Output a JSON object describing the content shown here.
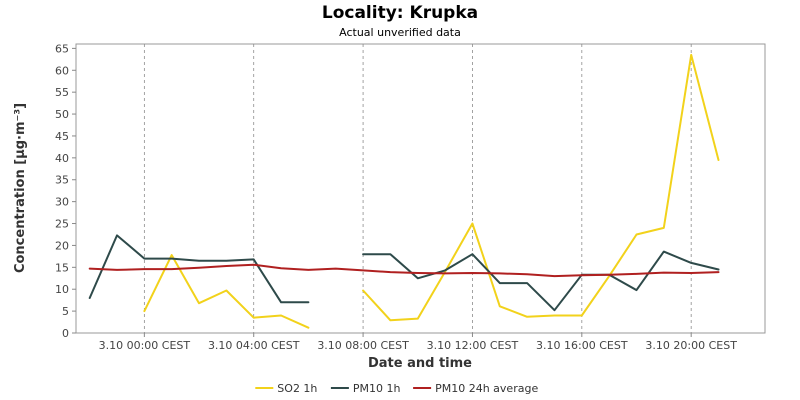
{
  "chart_data": {
    "type": "line",
    "title": "Locality: Krupka",
    "subtitle": "Actual unverified data",
    "xlabel": "Date and time",
    "ylabel": "Concentration [µg·m⁻³]",
    "ylim": [
      0,
      66
    ],
    "yticks": [
      0,
      5,
      10,
      15,
      20,
      25,
      30,
      35,
      40,
      45,
      50,
      55,
      60,
      65
    ],
    "xlim": [
      -2.5,
      22.7
    ],
    "xticks": [
      {
        "x": 0,
        "label": "3.10 00:00 CEST"
      },
      {
        "x": 4,
        "label": "3.10 04:00 CEST"
      },
      {
        "x": 8,
        "label": "3.10 08:00 CEST"
      },
      {
        "x": 12,
        "label": "3.10 12:00 CEST"
      },
      {
        "x": 16,
        "label": "3.10 16:00 CEST"
      },
      {
        "x": 20,
        "label": "3.10 20:00 CEST"
      }
    ],
    "grid": true,
    "legend_position": "bottom",
    "x": [
      -2,
      -1,
      0,
      1,
      2,
      3,
      4,
      5,
      6,
      7,
      8,
      9,
      10,
      11,
      12,
      13,
      14,
      15,
      16,
      17,
      18,
      19,
      20,
      21
    ],
    "series": [
      {
        "name": "SO2 1h",
        "color": "#f2d21b",
        "values": [
          null,
          null,
          5,
          17.8,
          6.8,
          9.7,
          3.5,
          4,
          1.2,
          null,
          9.7,
          2.9,
          3.3,
          14,
          25,
          6.1,
          3.7,
          4,
          4,
          13,
          22.5,
          24,
          63.5,
          39.5
        ]
      },
      {
        "name": "PM10 1h",
        "color": "#2e4a4a",
        "values": [
          8,
          22.3,
          17,
          17,
          16.5,
          16.5,
          16.8,
          7,
          7,
          null,
          18,
          18,
          12.5,
          14.3,
          18,
          11.4,
          11.4,
          5.2,
          13.3,
          13.3,
          9.8,
          18.6,
          16,
          14.5
        ]
      },
      {
        "name": "PM10 24h average",
        "color": "#b02020",
        "values": [
          14.7,
          14.4,
          14.6,
          14.6,
          14.9,
          15.3,
          15.6,
          14.8,
          14.4,
          14.7,
          14.3,
          13.9,
          13.7,
          13.6,
          13.7,
          13.6,
          13.4,
          13,
          13.2,
          13.3,
          13.5,
          13.8,
          13.7,
          13.9
        ]
      }
    ]
  }
}
